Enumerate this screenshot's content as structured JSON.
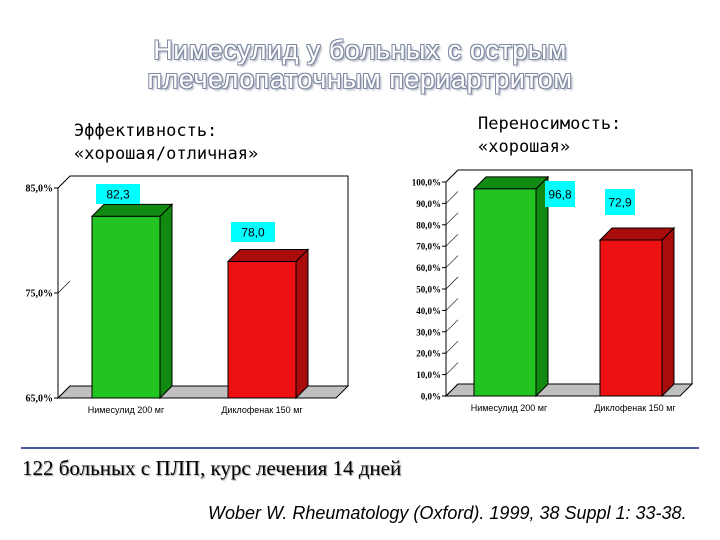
{
  "slide": {
    "title_line1": "Нимесулид у больных с острым",
    "title_line2": "плечелопаточным периартритом",
    "left_heading_line1": "Эффективность:",
    "left_heading_line2": "«хорошая/отличная»",
    "right_heading_line1": "Переносимость:",
    "right_heading_line2": "«хорошая»",
    "footnote": "122 больных с ПЛП, курс лечения 14 дней",
    "citation": "Wober W.  Rheumatology (Oxford). 1999, 38 Suppl 1: 33-38."
  },
  "chart_data": [
    {
      "type": "bar",
      "categories": [
        "Нимесулид 200 мг",
        "Диклофенак 150 мг"
      ],
      "values": [
        82.3,
        78.0
      ],
      "value_labels": [
        "82,3",
        "78,0"
      ],
      "ylim": [
        65,
        85
      ],
      "y_ticks": [
        {
          "value": 65,
          "label": "65,0%"
        },
        {
          "value": 75,
          "label": "75,0%"
        },
        {
          "value": 85,
          "label": "85,0%"
        }
      ],
      "bar_colors": [
        "#22c422",
        "#ee1111"
      ],
      "grid": false
    },
    {
      "type": "bar",
      "categories": [
        "Нимесулид 200 мг",
        "Диклофенак 150 мг"
      ],
      "values": [
        96.8,
        72.9
      ],
      "value_labels": [
        "96,8",
        "72,9"
      ],
      "ylim": [
        0,
        100
      ],
      "y_ticks": [
        {
          "value": 0,
          "label": "0,0%"
        },
        {
          "value": 10,
          "label": "10,0%"
        },
        {
          "value": 20,
          "label": "20,0%"
        },
        {
          "value": 30,
          "label": "30,0%"
        },
        {
          "value": 40,
          "label": "40,0%"
        },
        {
          "value": 50,
          "label": "50,0%"
        },
        {
          "value": 60,
          "label": "60,0%"
        },
        {
          "value": 70,
          "label": "70,0%"
        },
        {
          "value": 80,
          "label": "80,0%"
        },
        {
          "value": 90,
          "label": "90,0%"
        },
        {
          "value": 100,
          "label": "100,0%"
        }
      ],
      "bar_colors": [
        "#22c422",
        "#ee1111"
      ],
      "grid": false
    }
  ],
  "colors": {
    "label_box": "#00ffff",
    "depth_shade_green": "#118a11",
    "depth_shade_red": "#a80c0c",
    "divider": "#4a5aa0"
  }
}
